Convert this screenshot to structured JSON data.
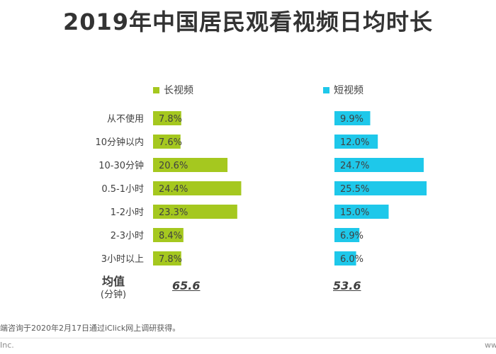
{
  "title": "2019年中国居民观看视频日均时长",
  "legend": {
    "long": "长视频",
    "short": "短视频"
  },
  "colors": {
    "long": "#a5c81f",
    "short": "#1ec8ea"
  },
  "mean": {
    "label": "均值",
    "unit": "(分钟)",
    "long": "65.6",
    "short": "53.6"
  },
  "footnote": "端咨询于2020年2月17日通过iClick网上调研获得。",
  "brand": "Inc.",
  "brand_right": "www",
  "chart_data": {
    "type": "bar",
    "orientation": "horizontal",
    "categories": [
      "从不使用",
      "10分钟以内",
      "10-30分钟",
      "0.5-1小时",
      "1-2小时",
      "2-3小时",
      "3小时以上"
    ],
    "series": [
      {
        "name": "长视频",
        "values": [
          7.8,
          7.6,
          20.6,
          24.4,
          23.3,
          8.4,
          7.8
        ]
      },
      {
        "name": "短视频",
        "values": [
          9.9,
          12.0,
          24.7,
          25.5,
          15.0,
          6.9,
          6.0
        ]
      }
    ],
    "value_format": "percent_1dp",
    "grid": false
  }
}
